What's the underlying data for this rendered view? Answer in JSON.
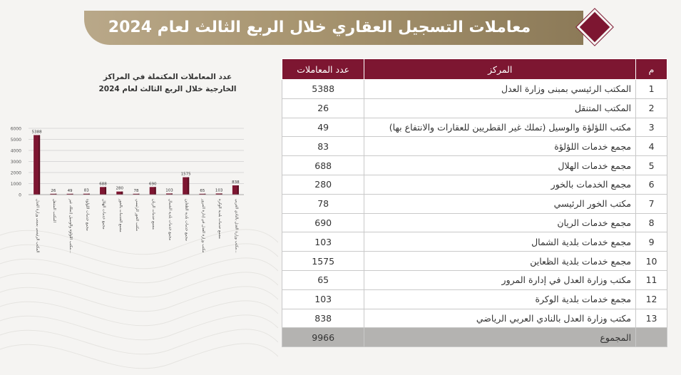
{
  "title": "معاملات التسجيل العقاري خلال الربع الثالث لعام 2024",
  "colors": {
    "accent": "#7d1631",
    "banner": "#a7946f",
    "total_row": "#b4b3b1"
  },
  "table": {
    "headers": {
      "index": "م",
      "center": "المركز",
      "count": "عدد المعاملات"
    },
    "rows": [
      {
        "index": "1",
        "center": "المكتب الرئيسي بمبنى وزارة العدل",
        "count": "5388"
      },
      {
        "index": "2",
        "center": "المكتب المتنقل",
        "count": "26"
      },
      {
        "index": "3",
        "center": "مكتب اللؤلؤة والوسيل (تملك غير القطريين للعقارات والانتفاع بها)",
        "count": "49"
      },
      {
        "index": "4",
        "center": "مجمع خدمات اللؤلؤة",
        "count": "83"
      },
      {
        "index": "5",
        "center": "مجمع خدمات الهلال",
        "count": "688"
      },
      {
        "index": "6",
        "center": "مجمع الخدمات بالخور",
        "count": "280"
      },
      {
        "index": "7",
        "center": "مكتب الخور الرئيسي",
        "count": "78"
      },
      {
        "index": "8",
        "center": "مجمع خدمات الريان",
        "count": "690"
      },
      {
        "index": "9",
        "center": "مجمع خدمات بلدية الشمال",
        "count": "103"
      },
      {
        "index": "10",
        "center": "مجمع خدمات بلدية الظعاين",
        "count": "1575"
      },
      {
        "index": "11",
        "center": "مكتب وزارة العدل في إدارة المرور",
        "count": "65"
      },
      {
        "index": "12",
        "center": "مجمع خدمات بلدية الوكرة",
        "count": "103"
      },
      {
        "index": "13",
        "center": "مكتب وزارة العدل بالنادي العربي الرياضي",
        "count": "838"
      }
    ],
    "total": {
      "label": "المجموع",
      "count": "9966"
    }
  },
  "chart_data": {
    "type": "bar",
    "title": "عدد المعاملات المكتملة في المراكز الخارجية خلال الربع الثالث لعام 2024",
    "categories": [
      "المكتب الرئيسي بمبنى وزارة العدل",
      "المكتب المتنقل",
      "مكتب اللؤلؤة والوسيل (تملك غير...",
      "مجمع خدمات اللؤلؤة",
      "مجمع خدمات الهلال",
      "مجمع الخدمات بالخور",
      "مكتب الخور الرئيسي",
      "مجمع خدمات الريان",
      "مجمع خدمات بلدية الشمال",
      "مجمع خدمات بلدية الظعاين",
      "مكتب وزارة العدل في إدارة المرور",
      "مجمع خدمات بلدية الوكرة",
      "مكتب وزارة العدل بالنادي العربي..."
    ],
    "values": [
      5388,
      26,
      49,
      83,
      688,
      280,
      78,
      690,
      103,
      1575,
      65,
      103,
      838
    ],
    "yticks": [
      0,
      1000,
      2000,
      3000,
      4000,
      5000,
      6000
    ],
    "ylim": [
      0,
      6000
    ],
    "grid": true,
    "bar_color": "#7d1631"
  }
}
